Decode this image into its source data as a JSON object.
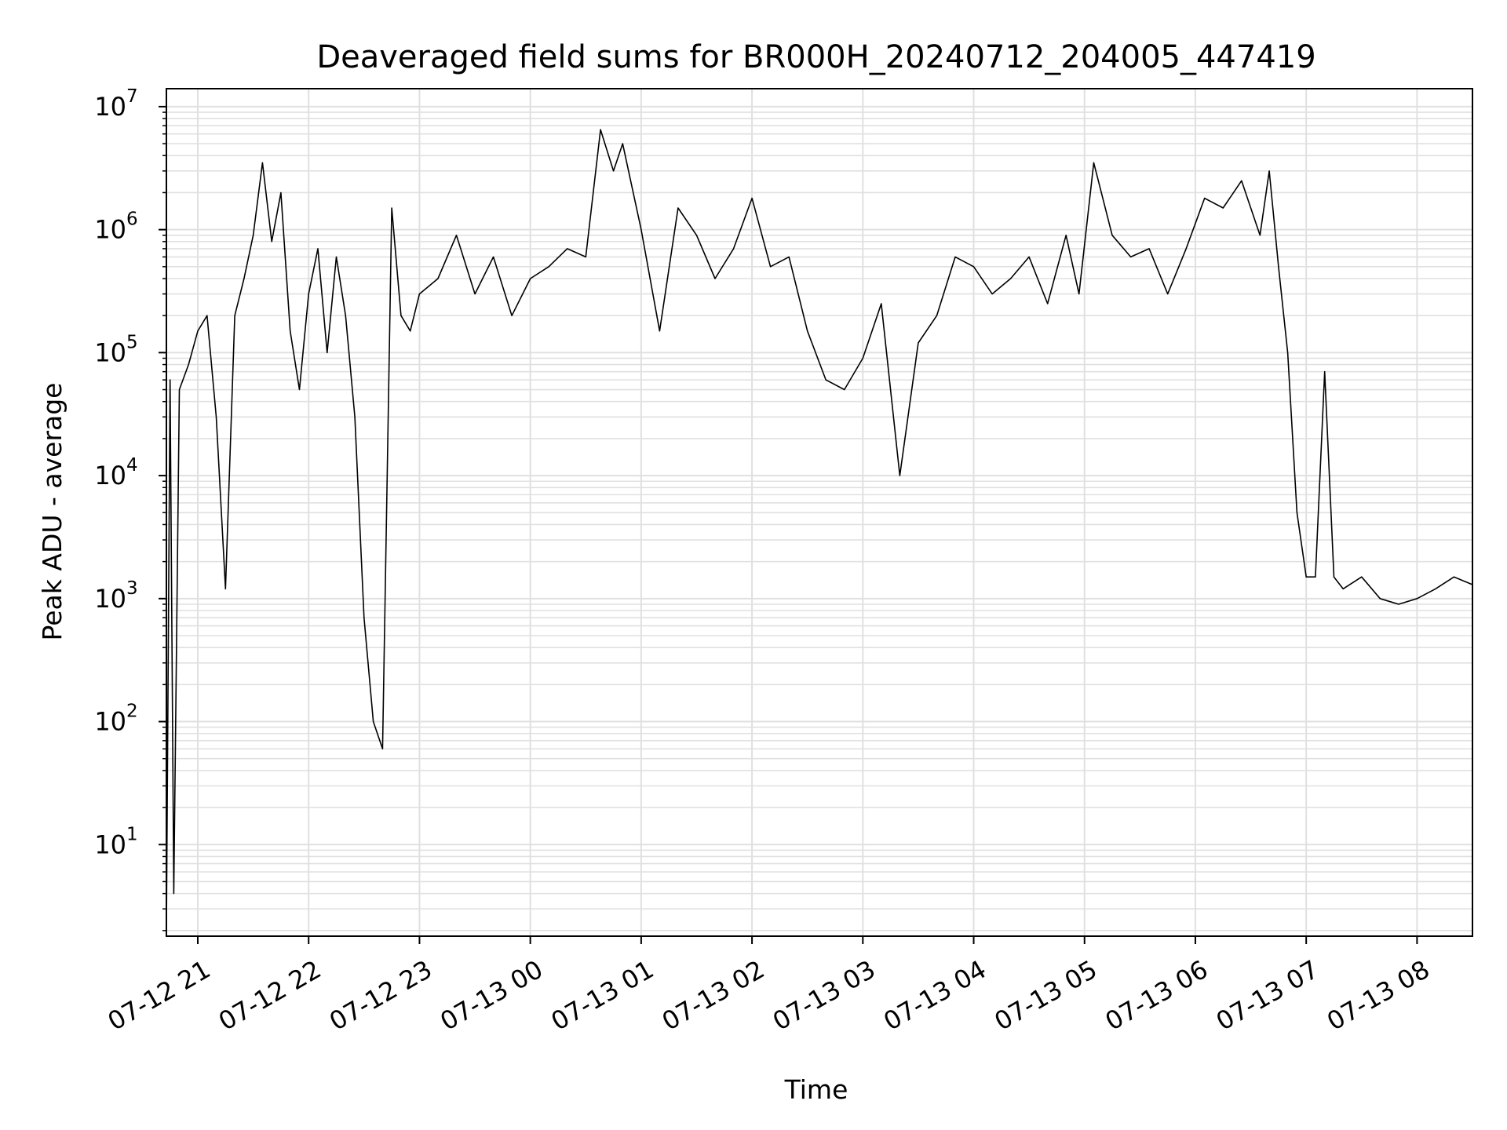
{
  "chart_data": {
    "type": "line",
    "title": "Deaveraged field sums for BR000H_20240712_204005_447419",
    "xlabel": "Time",
    "ylabel": "Peak ADU - average",
    "yscale": "log",
    "xlim": [
      "2024-07-12 20:43",
      "2024-07-13 08:30"
    ],
    "ylim": [
      1.8,
      14000000
    ],
    "x_ticks": [
      "07-12 21",
      "07-12 22",
      "07-12 23",
      "07-13 00",
      "07-13 01",
      "07-13 02",
      "07-13 03",
      "07-13 04",
      "07-13 05",
      "07-13 06",
      "07-13 07",
      "07-13 08"
    ],
    "y_ticks": [
      {
        "base": "10",
        "exp": "1",
        "value": 10
      },
      {
        "base": "10",
        "exp": "2",
        "value": 100
      },
      {
        "base": "10",
        "exp": "3",
        "value": 1000
      },
      {
        "base": "10",
        "exp": "4",
        "value": 10000
      },
      {
        "base": "10",
        "exp": "5",
        "value": 100000
      },
      {
        "base": "10",
        "exp": "6",
        "value": 1000000
      },
      {
        "base": "10",
        "exp": "7",
        "value": 10000000
      }
    ],
    "grid": true,
    "line_color": "#000000",
    "grid_color": "#e0e0e0",
    "series": [
      {
        "x": [
          "2024-07-12 20:43",
          "2024-07-12 20:45",
          "2024-07-12 20:47",
          "2024-07-12 20:50",
          "2024-07-12 20:55",
          "2024-07-12 21:00",
          "2024-07-12 21:05",
          "2024-07-12 21:10",
          "2024-07-12 21:15",
          "2024-07-12 21:20",
          "2024-07-12 21:25",
          "2024-07-12 21:30",
          "2024-07-12 21:35",
          "2024-07-12 21:40",
          "2024-07-12 21:45",
          "2024-07-12 21:50",
          "2024-07-12 21:55",
          "2024-07-12 22:00",
          "2024-07-12 22:05",
          "2024-07-12 22:10",
          "2024-07-12 22:15",
          "2024-07-12 22:20",
          "2024-07-12 22:25",
          "2024-07-12 22:30",
          "2024-07-12 22:35",
          "2024-07-12 22:40",
          "2024-07-12 22:45",
          "2024-07-12 22:50",
          "2024-07-12 22:55",
          "2024-07-12 23:00",
          "2024-07-12 23:10",
          "2024-07-12 23:20",
          "2024-07-12 23:30",
          "2024-07-12 23:40",
          "2024-07-12 23:50",
          "2024-07-13 00:00",
          "2024-07-13 00:10",
          "2024-07-13 00:20",
          "2024-07-13 00:30",
          "2024-07-13 00:38",
          "2024-07-13 00:45",
          "2024-07-13 00:50",
          "2024-07-13 01:00",
          "2024-07-13 01:10",
          "2024-07-13 01:20",
          "2024-07-13 01:30",
          "2024-07-13 01:40",
          "2024-07-13 01:50",
          "2024-07-13 02:00",
          "2024-07-13 02:10",
          "2024-07-13 02:20",
          "2024-07-13 02:30",
          "2024-07-13 02:40",
          "2024-07-13 02:50",
          "2024-07-13 03:00",
          "2024-07-13 03:10",
          "2024-07-13 03:20",
          "2024-07-13 03:30",
          "2024-07-13 03:40",
          "2024-07-13 03:50",
          "2024-07-13 04:00",
          "2024-07-13 04:10",
          "2024-07-13 04:20",
          "2024-07-13 04:30",
          "2024-07-13 04:40",
          "2024-07-13 04:50",
          "2024-07-13 04:57",
          "2024-07-13 05:05",
          "2024-07-13 05:15",
          "2024-07-13 05:25",
          "2024-07-13 05:35",
          "2024-07-13 05:45",
          "2024-07-13 05:55",
          "2024-07-13 06:05",
          "2024-07-13 06:15",
          "2024-07-13 06:25",
          "2024-07-13 06:35",
          "2024-07-13 06:40",
          "2024-07-13 06:45",
          "2024-07-13 06:50",
          "2024-07-13 06:55",
          "2024-07-13 07:00",
          "2024-07-13 07:05",
          "2024-07-13 07:10",
          "2024-07-13 07:15",
          "2024-07-13 07:20",
          "2024-07-13 07:30",
          "2024-07-13 07:40",
          "2024-07-13 07:50",
          "2024-07-13 08:00",
          "2024-07-13 08:10",
          "2024-07-13 08:20",
          "2024-07-13 08:30"
        ],
        "y": [
          2,
          60000,
          4,
          50000,
          80000,
          150000,
          200000,
          30000,
          1200,
          200000,
          400000,
          900000,
          3500000,
          800000,
          2000000,
          150000,
          50000,
          300000,
          700000,
          100000,
          600000,
          200000,
          30000,
          700,
          100,
          60,
          1500000,
          200000,
          150000,
          300000,
          400000,
          900000,
          300000,
          600000,
          200000,
          400000,
          500000,
          700000,
          600000,
          6500000,
          3000000,
          5000000,
          1000000,
          150000,
          1500000,
          900000,
          400000,
          700000,
          1800000,
          500000,
          600000,
          150000,
          60000,
          50000,
          90000,
          250000,
          10000,
          120000,
          200000,
          600000,
          500000,
          300000,
          400000,
          600000,
          250000,
          900000,
          300000,
          3500000,
          900000,
          600000,
          700000,
          300000,
          700000,
          1800000,
          1500000,
          2500000,
          900000,
          3000000,
          500000,
          100000,
          5000,
          1500,
          1500,
          70000,
          1500,
          1200,
          1500,
          1000,
          900,
          1000,
          1200,
          1500,
          1300
        ]
      }
    ]
  }
}
